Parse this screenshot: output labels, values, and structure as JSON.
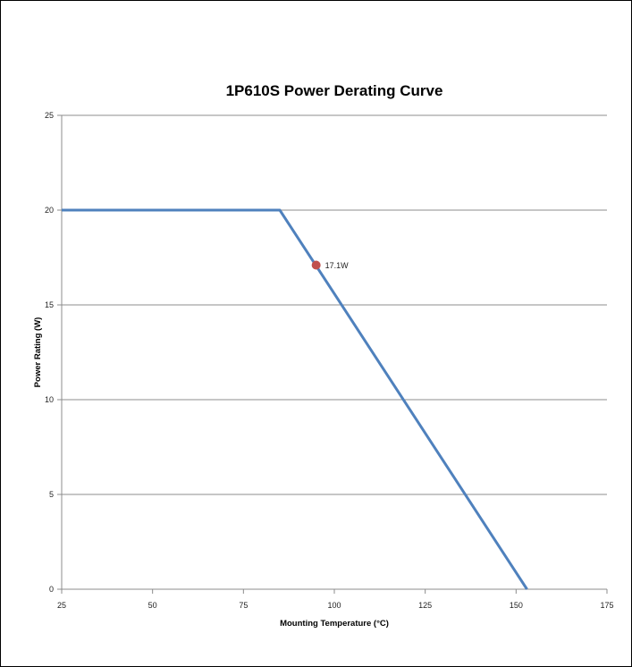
{
  "chart_data": {
    "type": "line",
    "title": "1P610S Power Derating Curve",
    "xlabel": "Mounting Temperature (°C)",
    "ylabel": "Power Rating (W)",
    "xlim": [
      25,
      175
    ],
    "ylim": [
      0,
      25
    ],
    "xticks": [
      25,
      50,
      75,
      100,
      125,
      150,
      175
    ],
    "yticks": [
      0,
      5,
      10,
      15,
      20,
      25
    ],
    "grid": "horizontal",
    "series": [
      {
        "color": "#4F81BD",
        "x": [
          25,
          85,
          153
        ],
        "y": [
          20,
          20,
          0
        ]
      }
    ],
    "points": [
      {
        "x": 95,
        "y": 17.1,
        "label": "17.1W",
        "color": "#C0504D"
      }
    ]
  }
}
